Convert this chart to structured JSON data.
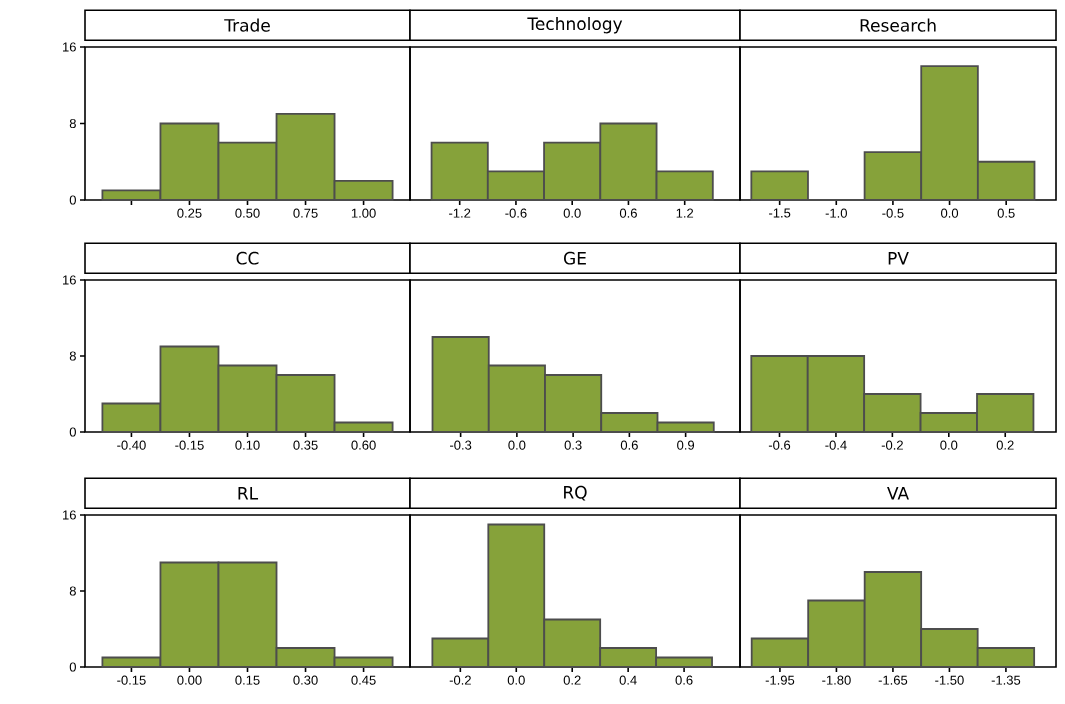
{
  "chart_data": [
    {
      "type": "histogram",
      "title": "Trade",
      "bins": [
        -0.125,
        0.125,
        0.375,
        0.625,
        0.875,
        1.125
      ],
      "values": [
        1,
        8,
        6,
        9,
        2
      ],
      "color": "#86a23a",
      "xlim": [
        -0.2,
        1.2
      ],
      "ylim": [
        0,
        16
      ],
      "xticks": [
        {
          "value": 0,
          "label": null
        },
        {
          "value": 0.25,
          "label": "0.25"
        },
        {
          "value": 0.5,
          "label": "0.50"
        },
        {
          "value": 0.75,
          "label": "0.75"
        },
        {
          "value": 1,
          "label": "1.00"
        }
      ],
      "yticks": [
        0,
        8,
        16
      ]
    },
    {
      "type": "histogram",
      "title": "Technology",
      "bins": [
        -1.5,
        -0.9,
        -0.3,
        0.3,
        0.9,
        1.5
      ],
      "values": [
        6,
        3,
        6,
        8,
        3
      ],
      "color": "#86a23a",
      "xlim": [
        -1.73,
        1.79
      ],
      "ylim": [
        0,
        16
      ],
      "xticks": [
        {
          "value": -1.2,
          "label": "-1.2"
        },
        {
          "value": -0.6,
          "label": "-0.6"
        },
        {
          "value": 0,
          "label": "0.0"
        },
        {
          "value": 0.6,
          "label": "0.6"
        },
        {
          "value": 1.2,
          "label": "1.2"
        }
      ],
      "tick_labels": "x"
    },
    {
      "type": "histogram",
      "title": "Research",
      "bins": [
        -1.75,
        -1.25,
        -0.75,
        -0.25,
        0.25,
        0.75
      ],
      "values": [
        3,
        0,
        5,
        14,
        4
      ],
      "color": "#86a23a",
      "xlim": [
        -1.85,
        0.94
      ],
      "ylim": [
        0,
        16
      ],
      "xticks": [
        {
          "value": -1.5,
          "label": "-1.5"
        },
        {
          "value": -1,
          "label": "-1.0"
        },
        {
          "value": -0.5,
          "label": "-0.5"
        },
        {
          "value": 0,
          "label": "0.0"
        },
        {
          "value": 0.5,
          "label": "0.5"
        }
      ],
      "tick_labels": "x"
    },
    {
      "type": "histogram",
      "title": "CC",
      "bins": [
        -0.525,
        -0.275,
        -0.025,
        0.225,
        0.475,
        0.725
      ],
      "values": [
        3,
        9,
        7,
        6,
        1
      ],
      "color": "#86a23a",
      "xlim": [
        -0.6,
        0.8
      ],
      "ylim": [
        0,
        16
      ],
      "xticks": [
        {
          "value": -0.4,
          "label": "-0.40"
        },
        {
          "value": -0.15,
          "label": "-0.15"
        },
        {
          "value": 0.1,
          "label": "0.10"
        },
        {
          "value": 0.35,
          "label": "0.35"
        },
        {
          "value": 0.6,
          "label": "0.60"
        }
      ],
      "yticks": [
        0,
        8,
        16
      ]
    },
    {
      "type": "histogram",
      "title": "GE",
      "bins": [
        -0.45,
        -0.15,
        0.15,
        0.45,
        0.75,
        1.05
      ],
      "values": [
        10,
        7,
        6,
        2,
        1
      ],
      "color": "#86a23a",
      "xlim": [
        -0.57,
        1.19
      ],
      "ylim": [
        0,
        16
      ],
      "xticks": [
        {
          "value": -0.3,
          "label": "-0.3"
        },
        {
          "value": 0,
          "label": "0.0"
        },
        {
          "value": 0.3,
          "label": "0.3"
        },
        {
          "value": 0.6,
          "label": "0.6"
        },
        {
          "value": 0.9,
          "label": "0.9"
        }
      ],
      "tick_labels": "x"
    },
    {
      "type": "histogram",
      "title": "PV",
      "bins": [
        -0.7,
        -0.5,
        -0.3,
        -0.1,
        0.1,
        0.3
      ],
      "values": [
        8,
        8,
        4,
        2,
        4
      ],
      "color": "#86a23a",
      "xlim": [
        -0.74,
        0.38
      ],
      "ylim": [
        0,
        16
      ],
      "xticks": [
        {
          "value": -0.6,
          "label": "-0.6"
        },
        {
          "value": -0.4,
          "label": "-0.4"
        },
        {
          "value": -0.2,
          "label": "-0.2"
        },
        {
          "value": 0,
          "label": "0.0"
        },
        {
          "value": 0.2,
          "label": "0.2"
        }
      ],
      "tick_labels": "x"
    },
    {
      "type": "histogram",
      "title": "RL",
      "bins": [
        -0.225,
        -0.075,
        0.075,
        0.225,
        0.375,
        0.525
      ],
      "values": [
        1,
        11,
        11,
        2,
        1
      ],
      "color": "#86a23a",
      "xlim": [
        -0.27,
        0.57
      ],
      "ylim": [
        0,
        16
      ],
      "xticks": [
        {
          "value": -0.15,
          "label": "-0.15"
        },
        {
          "value": 0,
          "label": "0.00"
        },
        {
          "value": 0.15,
          "label": "0.15"
        },
        {
          "value": 0.3,
          "label": "0.30"
        },
        {
          "value": 0.45,
          "label": "0.45"
        }
      ],
      "yticks": [
        0,
        8,
        16
      ]
    },
    {
      "type": "histogram",
      "title": "RQ",
      "bins": [
        -0.3,
        -0.1,
        0.1,
        0.3,
        0.5,
        0.7
      ],
      "values": [
        3,
        15,
        5,
        2,
        1
      ],
      "color": "#86a23a",
      "xlim": [
        -0.38,
        0.8
      ],
      "ylim": [
        0,
        16
      ],
      "xticks": [
        {
          "value": -0.2,
          "label": "-0.2"
        },
        {
          "value": 0,
          "label": "0.0"
        },
        {
          "value": 0.2,
          "label": "0.2"
        },
        {
          "value": 0.4,
          "label": "0.4"
        },
        {
          "value": 0.6,
          "label": "0.6"
        }
      ],
      "tick_labels": "x"
    },
    {
      "type": "histogram",
      "title": "VA",
      "bins": [
        -2.025,
        -1.875,
        -1.725,
        -1.575,
        -1.425,
        -1.275
      ],
      "values": [
        3,
        7,
        10,
        4,
        2
      ],
      "color": "#86a23a",
      "xlim": [
        -2.056,
        -1.217
      ],
      "ylim": [
        0,
        16
      ],
      "xticks": [
        {
          "value": -1.95,
          "label": "-1.95"
        },
        {
          "value": -1.8,
          "label": "-1.80"
        },
        {
          "value": -1.65,
          "label": "-1.65"
        },
        {
          "value": -1.5,
          "label": "-1.50"
        },
        {
          "value": -1.35,
          "label": "-1.35"
        }
      ],
      "tick_labels": "x"
    }
  ]
}
